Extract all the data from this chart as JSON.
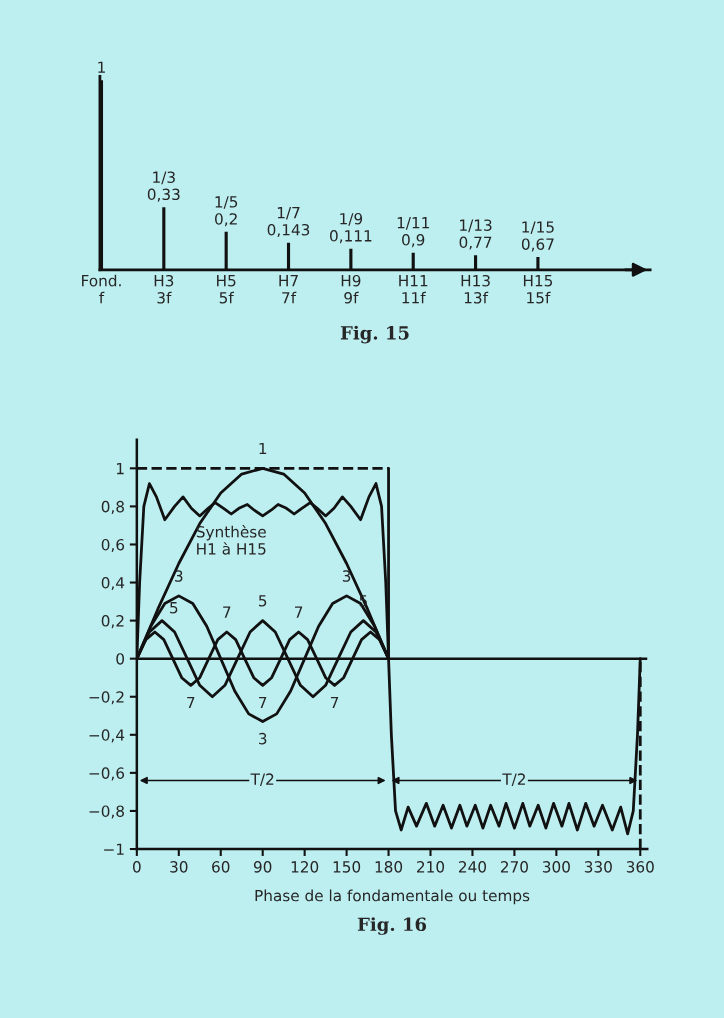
{
  "chart_data": [
    {
      "type": "bar",
      "title": "Fig. 15",
      "color": "#111111",
      "categories": [
        "Fond.\nf",
        "H3\n3f",
        "H5\n5f",
        "H7\n7f",
        "H9\n9f",
        "H11\n11f",
        "H13\n13f",
        "H15\n15f"
      ],
      "values": [
        1,
        0.33,
        0.2,
        0.143,
        0.111,
        0.09,
        0.077,
        0.067
      ],
      "value_labels": [
        "1",
        "1/3\n0,33",
        "1/5\n0,2",
        "1/7\n0,143",
        "1/9\n0,111",
        "1/11\n0,9",
        "1/13\n0,77",
        "1/15\n0,67"
      ],
      "tick_labels": "x"
    },
    {
      "type": "line",
      "title": "Fig. 16",
      "xlabel": "Phase de la fondamentale ou temps",
      "xlim": [
        0,
        365
      ],
      "xticks": [
        0,
        30,
        60,
        90,
        120,
        150,
        180,
        210,
        240,
        270,
        300,
        330,
        360
      ],
      "ylim": [
        -1,
        1.15
      ],
      "yticks": [
        {
          "value": -1,
          "label": "−1"
        },
        {
          "value": -0.8,
          "label": "−0,8"
        },
        {
          "value": -0.6,
          "label": "−0,6"
        },
        {
          "value": -0.4,
          "label": "−0,4"
        },
        {
          "value": -0.2,
          "label": "−0,2"
        },
        0,
        {
          "value": 0.2,
          "label": "0,2"
        },
        {
          "value": 0.4,
          "label": "0,4"
        },
        {
          "value": 0.6,
          "label": "0,6"
        },
        {
          "value": 0.8,
          "label": "0,8"
        },
        1
      ],
      "grid": false,
      "marker": "none",
      "ref_lines": [
        {
          "axis": "y",
          "value": 0,
          "color": "#111111",
          "line_style": "solid"
        }
      ],
      "series": [
        {
          "color": "#111111",
          "line_style": "solid",
          "x": [
            0,
            15,
            30,
            45,
            60,
            75,
            90,
            105,
            120,
            135,
            150,
            165,
            180
          ],
          "values": [
            0,
            0.26,
            0.5,
            0.71,
            0.87,
            0.97,
            1,
            0.97,
            0.87,
            0.71,
            0.5,
            0.26,
            0
          ]
        },
        {
          "color": "#111111",
          "line_style": "solid",
          "x": [
            0,
            10,
            20,
            30,
            40,
            50,
            60,
            70,
            80,
            90,
            100,
            110,
            120,
            130,
            140,
            150,
            160,
            170,
            180
          ],
          "values": [
            0,
            0.17,
            0.29,
            0.33,
            0.29,
            0.17,
            0,
            -0.17,
            -0.29,
            -0.33,
            -0.29,
            -0.17,
            0,
            0.17,
            0.29,
            0.33,
            0.29,
            0.17,
            0
          ]
        },
        {
          "color": "#111111",
          "line_style": "solid",
          "x": [
            0,
            9,
            18,
            27,
            36,
            45,
            54,
            63,
            72,
            81,
            90,
            99,
            108,
            117,
            126,
            135,
            144,
            153,
            162,
            171,
            180
          ],
          "values": [
            0,
            0.14,
            0.2,
            0.14,
            0,
            -0.14,
            -0.2,
            -0.14,
            0,
            0.14,
            0.2,
            0.14,
            0,
            -0.14,
            -0.2,
            -0.14,
            0,
            0.14,
            0.2,
            0.14,
            0
          ]
        },
        {
          "color": "#111111",
          "line_style": "solid",
          "x": [
            0,
            6.4,
            12.9,
            19.3,
            25.7,
            32.1,
            38.6,
            45,
            51.4,
            57.9,
            64.3,
            70.7,
            77.1,
            83.6,
            90,
            96.4,
            102.9,
            109.3,
            115.7,
            122.1,
            128.6,
            135,
            141.4,
            147.9,
            154.3,
            160.7,
            167.1,
            173.6,
            180
          ],
          "values": [
            0,
            0.1,
            0.14,
            0.1,
            0,
            -0.1,
            -0.14,
            -0.1,
            0,
            0.1,
            0.14,
            0.1,
            0,
            -0.1,
            -0.14,
            -0.1,
            0,
            0.1,
            0.14,
            0.1,
            0,
            -0.1,
            -0.14,
            -0.1,
            0,
            0.1,
            0.14,
            0.1,
            0
          ]
        },
        {
          "color": "#111111",
          "line_style": "solid",
          "x": [
            0,
            2,
            5,
            9,
            14,
            20,
            27,
            33,
            39,
            45,
            51,
            56,
            62,
            67.5,
            73,
            79,
            84,
            90,
            96,
            101,
            107,
            112.5,
            118,
            124,
            129,
            135,
            141,
            147,
            153,
            160,
            166,
            171,
            175,
            178,
            180,
            182,
            185,
            189,
            194,
            200,
            207,
            213,
            219,
            225,
            231,
            236,
            242,
            247.5,
            253,
            259,
            264,
            270,
            276,
            281,
            287,
            292.5,
            298,
            304,
            309,
            315,
            321,
            327,
            333,
            340,
            346,
            351,
            355,
            358,
            360
          ],
          "values": [
            0,
            0.4,
            0.8,
            0.92,
            0.85,
            0.73,
            0.8,
            0.85,
            0.79,
            0.75,
            0.79,
            0.82,
            0.79,
            0.76,
            0.79,
            0.81,
            0.78,
            0.75,
            0.78,
            0.81,
            0.79,
            0.76,
            0.79,
            0.82,
            0.79,
            0.75,
            0.79,
            0.85,
            0.8,
            0.73,
            0.85,
            0.92,
            0.8,
            0.4,
            0,
            -0.4,
            -0.8,
            -0.9,
            -0.78,
            -0.88,
            -0.76,
            -0.88,
            -0.77,
            -0.89,
            -0.77,
            -0.88,
            -0.77,
            -0.89,
            -0.77,
            -0.88,
            -0.76,
            -0.89,
            -0.76,
            -0.88,
            -0.77,
            -0.89,
            -0.76,
            -0.88,
            -0.76,
            -0.9,
            -0.76,
            -0.88,
            -0.77,
            -0.9,
            -0.78,
            -0.92,
            -0.8,
            -0.4,
            0
          ]
        },
        {
          "color": "#111111",
          "line_style": "dashed",
          "x": [
            0,
            180
          ],
          "values": [
            1,
            1
          ]
        },
        {
          "color": "#111111",
          "line_style": "solid",
          "x": [
            180,
            180
          ],
          "values": [
            0,
            1
          ]
        },
        {
          "color": "#111111",
          "line_style": "dashed",
          "x": [
            360,
            360
          ],
          "values": [
            -1,
            0
          ]
        }
      ],
      "annotations": [
        {
          "text": "1",
          "x": 90,
          "y": 1
        },
        {
          "text": "Synthèse\nH1 à H15",
          "x": 67.5,
          "y": 0.76
        },
        {
          "text": "3",
          "x": 30,
          "y": 0.33
        },
        {
          "text": "3",
          "x": 150,
          "y": 0.33
        },
        {
          "text": "3",
          "x": 90,
          "y": -0.33
        },
        {
          "text": "5",
          "x": 18,
          "y": 0.2
        },
        {
          "text": "5",
          "x": 90,
          "y": 0.2
        },
        {
          "text": "5",
          "x": 162,
          "y": 0.2
        },
        {
          "text": "7",
          "x": 64.3,
          "y": 0.14
        },
        {
          "text": "7",
          "x": 115.7,
          "y": 0.14
        },
        {
          "text": "7",
          "x": 38.6,
          "y": -0.14
        },
        {
          "text": "7",
          "x": 90,
          "y": -0.14
        },
        {
          "text": "7",
          "x": 141.4,
          "y": -0.14
        },
        {
          "text": "T/2",
          "x": 90,
          "y": -0.64
        },
        {
          "text": "T/2",
          "x": 270,
          "y": -0.64
        }
      ]
    }
  ]
}
